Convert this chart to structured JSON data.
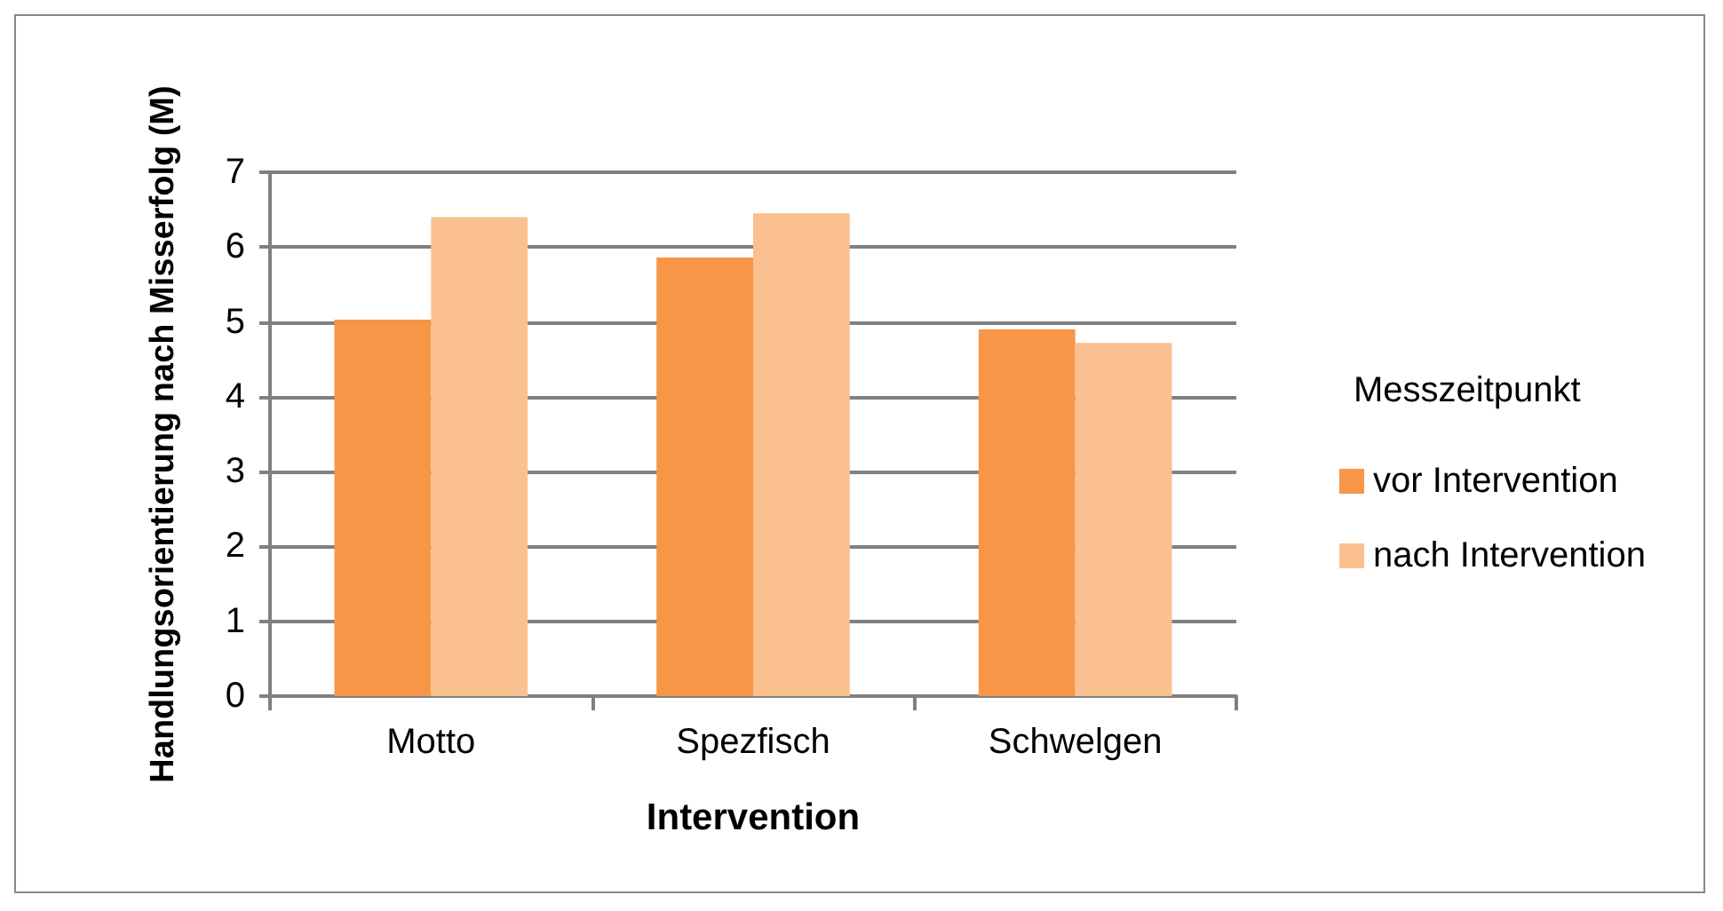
{
  "chart_data": {
    "type": "bar",
    "xlabel": "Intervention",
    "ylabel": "Handlungsorientierung nach Misserfolg (M)",
    "legend_title": "Messzeitpunkt",
    "categories": [
      "Motto",
      "Spezfisch",
      "Schwelgen"
    ],
    "series": [
      {
        "name": "vor Intervention",
        "color": "#f79646",
        "values": [
          5.03,
          5.86,
          4.9
        ]
      },
      {
        "name": "nach Intervention",
        "color": "#fac090",
        "values": [
          6.4,
          6.45,
          4.72
        ]
      }
    ],
    "ylim": [
      0,
      7
    ],
    "yticks": [
      0,
      1,
      2,
      3,
      4,
      5,
      6,
      7
    ],
    "grid": "y",
    "legend": "right"
  }
}
